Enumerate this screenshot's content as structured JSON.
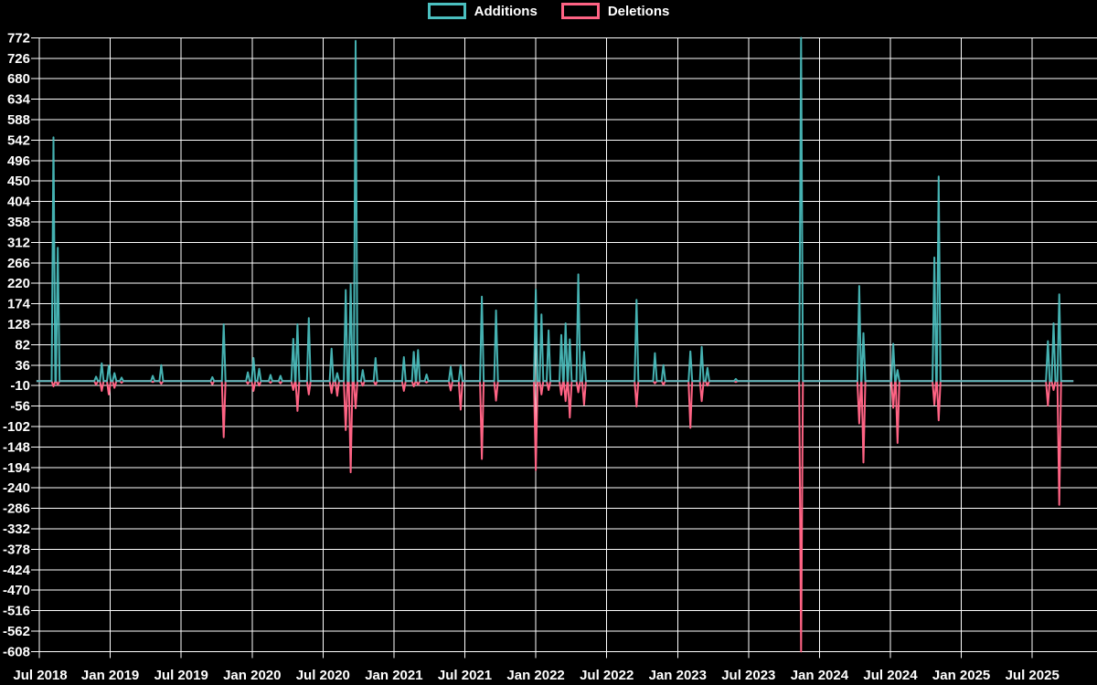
{
  "chart_data": {
    "type": "line",
    "title": "",
    "legend_position": "top-center",
    "grid": true,
    "background": "#000000",
    "colors": {
      "additions": "#4bc0c0",
      "deletions": "#ff6384",
      "grid": "#ffffff",
      "axis_text": "#ffffff"
    },
    "series": [
      {
        "name": "Additions",
        "key": "additions",
        "color": "#4bc0c0"
      },
      {
        "name": "Deletions",
        "key": "deletions",
        "color": "#ff6384"
      }
    ],
    "ylim": [
      -608,
      772
    ],
    "y_tick_step": 46,
    "y_ticks": [
      772,
      726,
      680,
      634,
      588,
      542,
      496,
      450,
      404,
      358,
      312,
      266,
      220,
      174,
      128,
      82,
      36,
      -10,
      -56,
      -102,
      -148,
      -194,
      -240,
      -286,
      -332,
      -378,
      -424,
      -470,
      -516,
      -562,
      -608
    ],
    "x_ticks": [
      {
        "label": "Jul 2018",
        "t": 2018.5
      },
      {
        "label": "Jan 2019",
        "t": 2019.0
      },
      {
        "label": "Jul 2019",
        "t": 2019.5
      },
      {
        "label": "Jan 2020",
        "t": 2020.0
      },
      {
        "label": "Jul 2020",
        "t": 2020.5
      },
      {
        "label": "Jan 2021",
        "t": 2021.0
      },
      {
        "label": "Jul 2021",
        "t": 2021.5
      },
      {
        "label": "Jan 2022",
        "t": 2022.0
      },
      {
        "label": "Jul 2022",
        "t": 2022.5
      },
      {
        "label": "Jan 2023",
        "t": 2023.0
      },
      {
        "label": "Jul 2023",
        "t": 2023.5
      },
      {
        "label": "Jan 2024",
        "t": 2024.0
      },
      {
        "label": "Jul 2024",
        "t": 2024.5
      },
      {
        "label": "Jan 2025",
        "t": 2025.0
      },
      {
        "label": "Jul 2025",
        "t": 2025.5
      }
    ],
    "x_start": 2018.48,
    "x_end": 2025.79,
    "baseline_value": 0,
    "events_note": "weekly additions/deletions spikes; all weeks not listed are 0/0",
    "events": [
      {
        "t": 2018.6,
        "date": "Aug 2018",
        "additions": 548,
        "deletions": -12
      },
      {
        "t": 2018.63,
        "date": "Aug 2018",
        "additions": 300,
        "deletions": -8
      },
      {
        "t": 2018.9,
        "date": "Nov 2018",
        "additions": 10,
        "deletions": -8
      },
      {
        "t": 2018.94,
        "date": "Dec 2018",
        "additions": 40,
        "deletions": -22
      },
      {
        "t": 2018.99,
        "date": "Dec 2018",
        "additions": 35,
        "deletions": -30
      },
      {
        "t": 2019.03,
        "date": "Jan 2019",
        "additions": 18,
        "deletions": -15
      },
      {
        "t": 2019.08,
        "date": "Jan 2019",
        "additions": 8,
        "deletions": -4
      },
      {
        "t": 2019.3,
        "date": "Apr 2019",
        "additions": 12,
        "deletions": -2
      },
      {
        "t": 2019.36,
        "date": "May 2019",
        "additions": 36,
        "deletions": -6
      },
      {
        "t": 2019.72,
        "date": "Sep 2019",
        "additions": 9,
        "deletions": -7
      },
      {
        "t": 2019.8,
        "date": "Oct 2019",
        "additions": 128,
        "deletions": -126
      },
      {
        "t": 2019.97,
        "date": "Dec 2019",
        "additions": 20,
        "deletions": -6
      },
      {
        "t": 2020.01,
        "date": "Jan 2020",
        "additions": 52,
        "deletions": -22
      },
      {
        "t": 2020.05,
        "date": "Jan 2020",
        "additions": 28,
        "deletions": -10
      },
      {
        "t": 2020.13,
        "date": "Feb 2020",
        "additions": 14,
        "deletions": -4
      },
      {
        "t": 2020.2,
        "date": "Mar 2020",
        "additions": 12,
        "deletions": -5
      },
      {
        "t": 2020.29,
        "date": "Apr 2020",
        "additions": 95,
        "deletions": -20
      },
      {
        "t": 2020.32,
        "date": "Apr 2020",
        "additions": 128,
        "deletions": -67
      },
      {
        "t": 2020.4,
        "date": "May 2020",
        "additions": 142,
        "deletions": -30
      },
      {
        "t": 2020.56,
        "date": "Jul 2020",
        "additions": 73,
        "deletions": -27
      },
      {
        "t": 2020.6,
        "date": "Aug 2020",
        "additions": 18,
        "deletions": -33
      },
      {
        "t": 2020.66,
        "date": "Sep 2020",
        "additions": 205,
        "deletions": -110
      },
      {
        "t": 2020.695,
        "date": "Sep 2020",
        "additions": 218,
        "deletions": -205
      },
      {
        "t": 2020.73,
        "date": "Sep 2020",
        "additions": 765,
        "deletions": -61
      },
      {
        "t": 2020.78,
        "date": "Oct 2020",
        "additions": 25,
        "deletions": -10
      },
      {
        "t": 2020.87,
        "date": "Nov 2020",
        "additions": 52,
        "deletions": -8
      },
      {
        "t": 2021.07,
        "date": "Jan 2021",
        "additions": 54,
        "deletions": -22
      },
      {
        "t": 2021.14,
        "date": "Feb 2021",
        "additions": 66,
        "deletions": -12
      },
      {
        "t": 2021.17,
        "date": "Mar 2021",
        "additions": 70,
        "deletions": -8
      },
      {
        "t": 2021.23,
        "date": "Mar 2021",
        "additions": 15,
        "deletions": -3
      },
      {
        "t": 2021.4,
        "date": "May 2021",
        "additions": 32,
        "deletions": -21
      },
      {
        "t": 2021.47,
        "date": "Jun 2021",
        "additions": 36,
        "deletions": -64
      },
      {
        "t": 2021.62,
        "date": "Aug 2021",
        "additions": 190,
        "deletions": -175
      },
      {
        "t": 2021.72,
        "date": "Sep 2021",
        "additions": 159,
        "deletions": -44
      },
      {
        "t": 2022.0,
        "date": "Jan 2022",
        "additions": 206,
        "deletions": -200
      },
      {
        "t": 2022.04,
        "date": "Jan 2022",
        "additions": 150,
        "deletions": -30
      },
      {
        "t": 2022.09,
        "date": "Feb 2022",
        "additions": 114,
        "deletions": -20
      },
      {
        "t": 2022.18,
        "date": "Mar 2022",
        "additions": 104,
        "deletions": -31
      },
      {
        "t": 2022.21,
        "date": "Mar 2022",
        "additions": 130,
        "deletions": -45
      },
      {
        "t": 2022.24,
        "date": "Mar 2022",
        "additions": 94,
        "deletions": -82
      },
      {
        "t": 2022.3,
        "date": "Apr 2022",
        "additions": 240,
        "deletions": -25
      },
      {
        "t": 2022.34,
        "date": "May 2022",
        "additions": 66,
        "deletions": -53
      },
      {
        "t": 2022.71,
        "date": "Sep 2022",
        "additions": 183,
        "deletions": -57
      },
      {
        "t": 2022.84,
        "date": "Nov 2022",
        "additions": 63,
        "deletions": -5
      },
      {
        "t": 2022.9,
        "date": "Nov 2022",
        "additions": 36,
        "deletions": -8
      },
      {
        "t": 2023.09,
        "date": "Feb 2023",
        "additions": 67,
        "deletions": -105
      },
      {
        "t": 2023.17,
        "date": "Mar 2023",
        "additions": 77,
        "deletions": -45
      },
      {
        "t": 2023.21,
        "date": "Mar 2023",
        "additions": 30,
        "deletions": -10
      },
      {
        "t": 2023.41,
        "date": "May 2023",
        "additions": 5,
        "deletions": -2
      },
      {
        "t": 2023.87,
        "date": "Nov 2023",
        "additions": 772,
        "deletions": -608
      },
      {
        "t": 2024.28,
        "date": "Apr 2024",
        "additions": 214,
        "deletions": -95
      },
      {
        "t": 2024.31,
        "date": "Apr 2024",
        "additions": 108,
        "deletions": -183
      },
      {
        "t": 2024.52,
        "date": "Jul 2024",
        "additions": 84,
        "deletions": -60
      },
      {
        "t": 2024.55,
        "date": "Jul 2024",
        "additions": 25,
        "deletions": -139
      },
      {
        "t": 2024.81,
        "date": "Oct 2024",
        "additions": 278,
        "deletions": -53
      },
      {
        "t": 2024.84,
        "date": "Nov 2024",
        "additions": 460,
        "deletions": -88
      },
      {
        "t": 2025.61,
        "date": "Aug 2025",
        "additions": 90,
        "deletions": -55
      },
      {
        "t": 2025.65,
        "date": "Aug 2025",
        "additions": 130,
        "deletions": -20
      },
      {
        "t": 2025.69,
        "date": "Sep 2025",
        "additions": 195,
        "deletions": -278
      }
    ]
  }
}
